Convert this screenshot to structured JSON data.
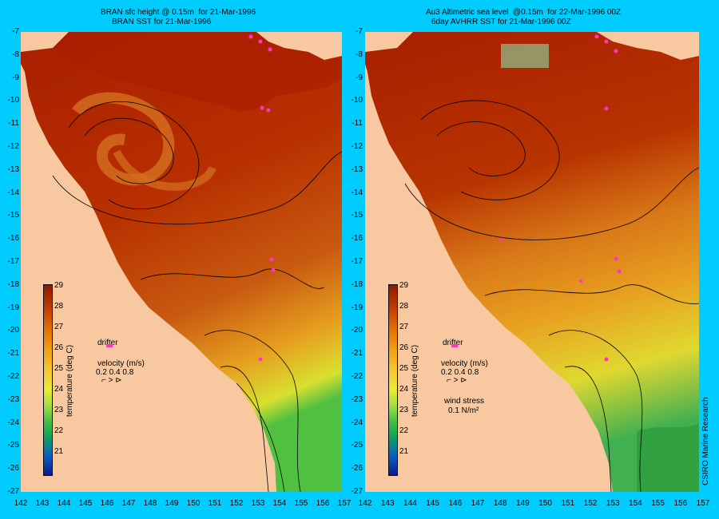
{
  "left_panel": {
    "title_line1": "BRAN sfc height @ 0.15m  for 21-Mar-1996",
    "title_line2": "BRAN SST for 21-Mar-1996"
  },
  "right_panel": {
    "title_line1": "Au3 Altimetric sea level  @0.15m  for 22-Mar-1996 00Z",
    "title_line2": "6day AVHRR SST for 21-Mar-1996 00Z"
  },
  "y_axis_labels": [
    "-7",
    "-8",
    "-9",
    "-10",
    "-11",
    "-12",
    "-13",
    "-14",
    "-15",
    "-16",
    "-17",
    "-18",
    "-19",
    "-20",
    "-21",
    "-22",
    "-23",
    "-24",
    "-25",
    "-26",
    "-27"
  ],
  "x_axis_labels": [
    "142",
    "143",
    "144",
    "145",
    "146",
    "147",
    "148",
    "149",
    "150",
    "151",
    "152",
    "153",
    "154",
    "155",
    "156",
    "157"
  ],
  "colorbar": {
    "title": "temperature (deg C)",
    "ticks": [
      "29",
      "28",
      "27",
      "26",
      "25",
      "24",
      "23",
      "22",
      "21"
    ]
  },
  "legend": {
    "drifter": "drifter",
    "velocity": "velocity (m/s)",
    "velocity_scale": "0.2 0.4 0.8",
    "wind_stress": "wind stress",
    "wind_stress_value": "0.1 N/m²"
  },
  "credit": "CSIRO Marine Research",
  "colors": {
    "background": "#00ccff",
    "land": "#f8c8a0",
    "warm": "#b22a00",
    "drifter": "#ff33cc"
  }
}
